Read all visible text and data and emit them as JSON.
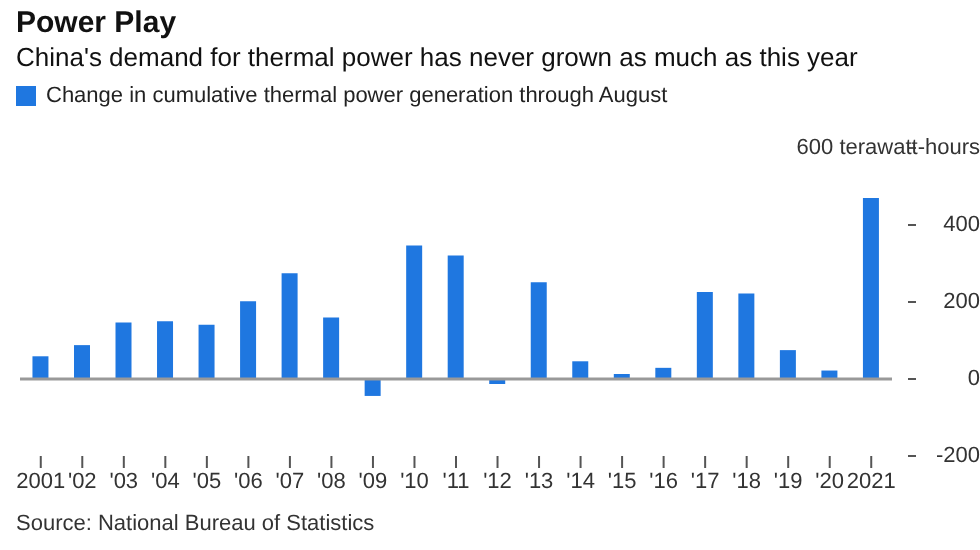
{
  "chart_data": {
    "type": "bar",
    "title": "Power Play",
    "subtitle": "China's demand for thermal power has never grown as much as this year",
    "categories": [
      "2001",
      "'02",
      "'03",
      "'04",
      "'05",
      "'06",
      "'07",
      "'08",
      "'09",
      "'10",
      "'11",
      "'12",
      "'13",
      "'14",
      "'15",
      "'16",
      "'17",
      "'18",
      "'19",
      "'20",
      "2021"
    ],
    "series": [
      {
        "name": "Change in cumulative thermal power generation through August",
        "color": "#1f77e0",
        "values": [
          59,
          88,
          147,
          150,
          141,
          202,
          275,
          160,
          -44,
          347,
          321,
          -13,
          251,
          46,
          13,
          29,
          226,
          222,
          75,
          22,
          470
        ]
      }
    ],
    "ylim": [
      -200,
      600
    ],
    "yticks": [
      -200,
      0,
      200,
      400,
      {
        "value": 600,
        "label": "600 terawatt-hours"
      }
    ],
    "ref_lines": [
      {
        "axis": "y",
        "value": 0,
        "color": "#999999"
      }
    ],
    "legend": "top left",
    "grid": false,
    "annotations": [
      "Source: National Bureau of Statistics"
    ]
  }
}
